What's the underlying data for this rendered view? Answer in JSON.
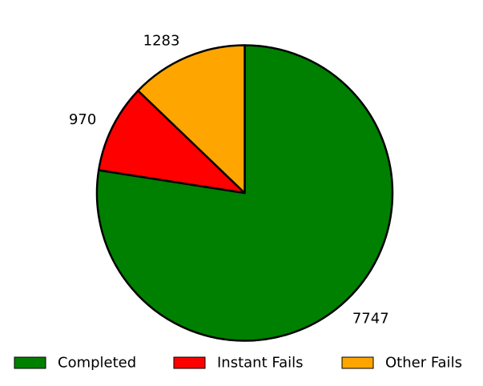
{
  "chart_data": {
    "type": "pie",
    "title": "",
    "slices": [
      {
        "label": "Completed",
        "value": 7747,
        "color": "#008000"
      },
      {
        "label": "Instant Fails",
        "value": 970,
        "color": "#ff0000"
      },
      {
        "label": "Other Fails",
        "value": 1283,
        "color": "#ffa500"
      }
    ],
    "data_labels_shown": true,
    "legend_position": "bottom",
    "start_angle_deg": 90,
    "direction": "clockwise",
    "slice_edge_color": "#000000"
  }
}
